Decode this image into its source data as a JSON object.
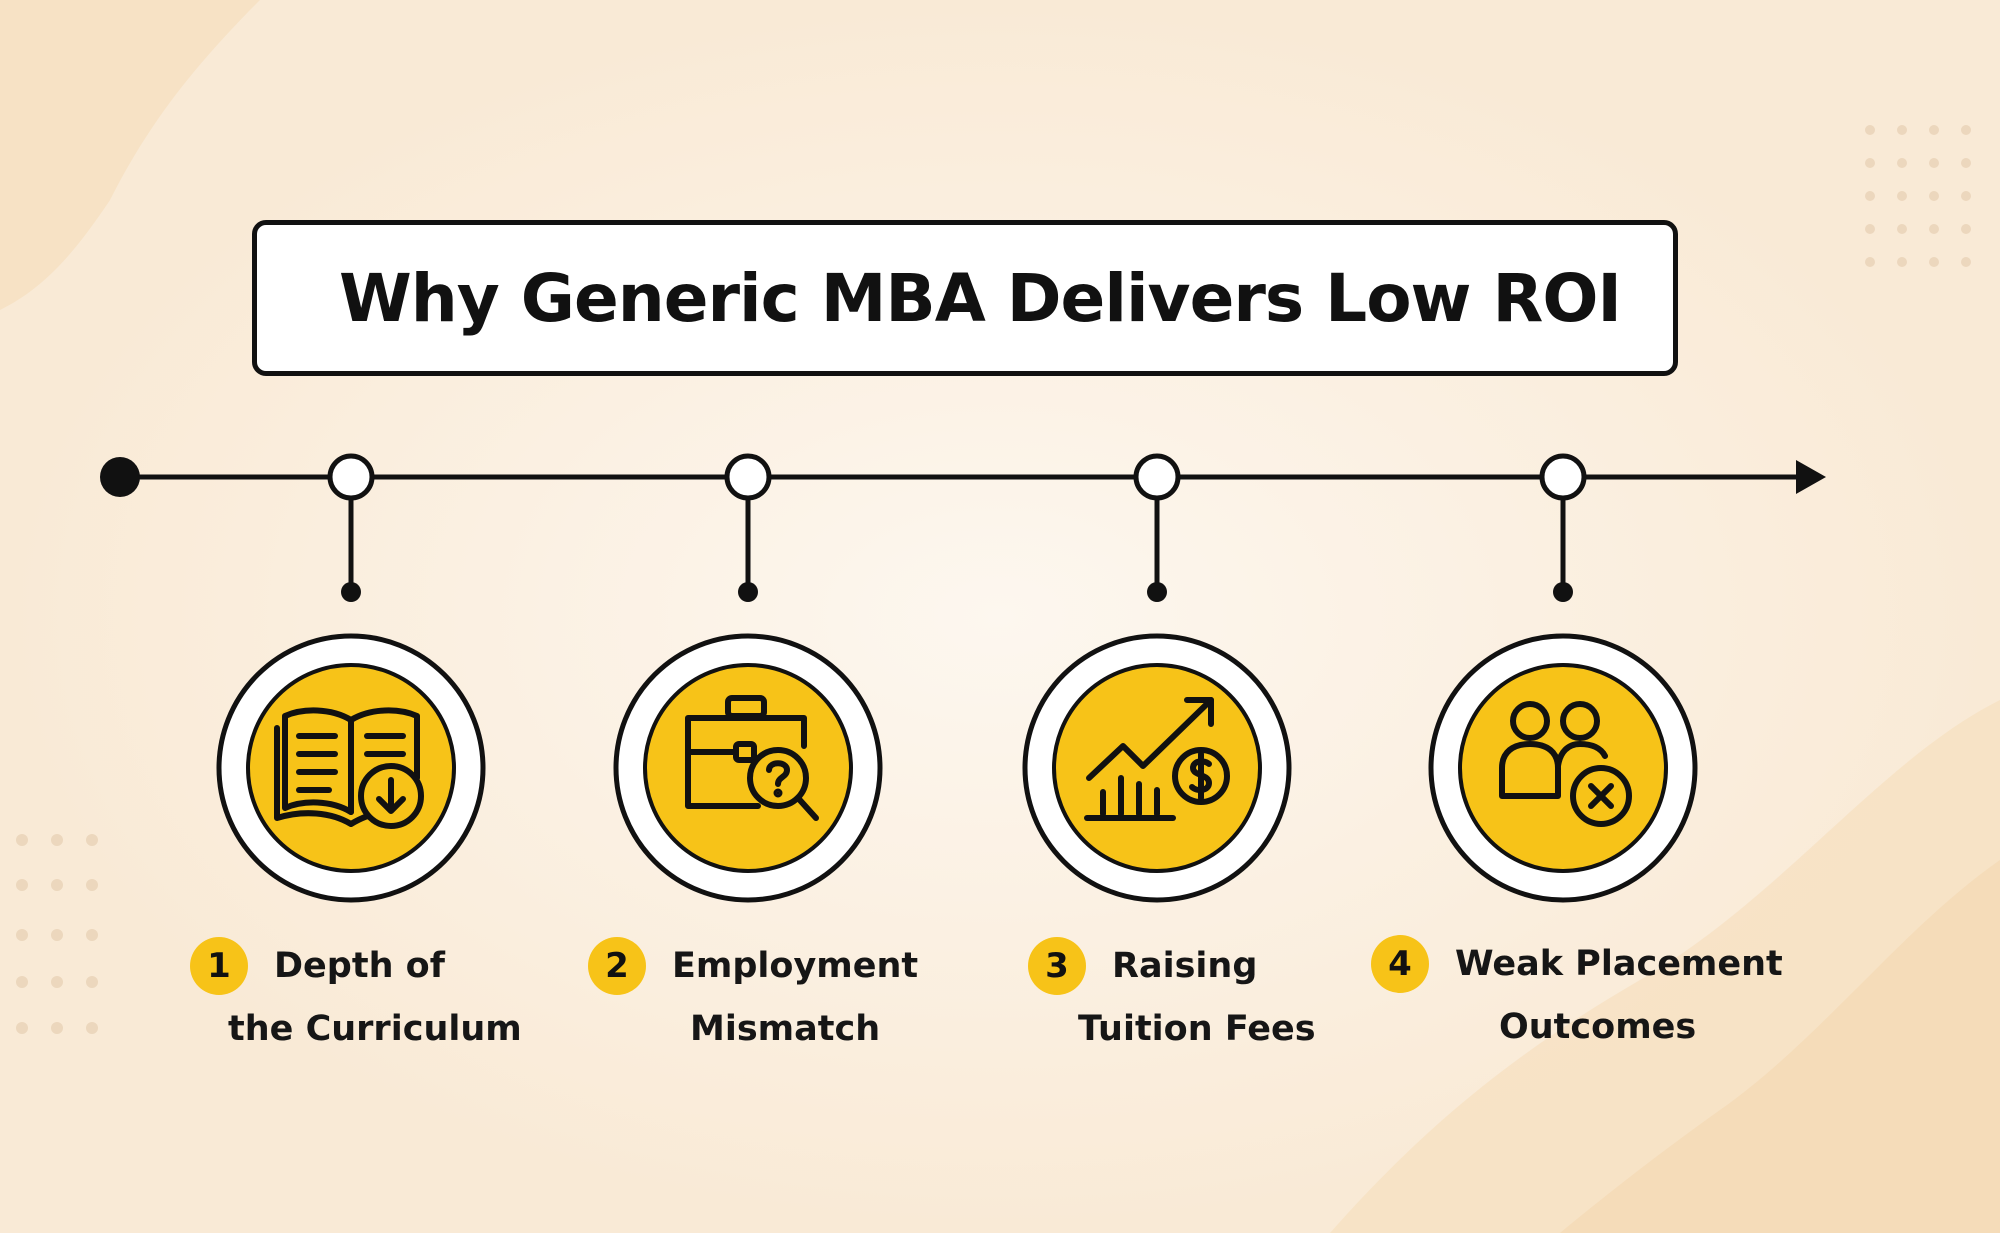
{
  "title": "Why Generic MBA Delivers Low ROI",
  "colors": {
    "accent": "#f7c318",
    "line": "#111111",
    "background": "#fbf1e6"
  },
  "steps": [
    {
      "number": "1",
      "line1": "Depth of",
      "line2": "the Curriculum",
      "icon": "book-download-icon"
    },
    {
      "number": "2",
      "line1": "Employment",
      "line2": "Mismatch",
      "icon": "briefcase-question-icon"
    },
    {
      "number": "3",
      "line1": "Raising",
      "line2": "Tuition Fees",
      "icon": "growth-dollar-icon"
    },
    {
      "number": "4",
      "line1": "Weak Placement",
      "line2": "Outcomes",
      "icon": "people-cross-icon"
    }
  ]
}
